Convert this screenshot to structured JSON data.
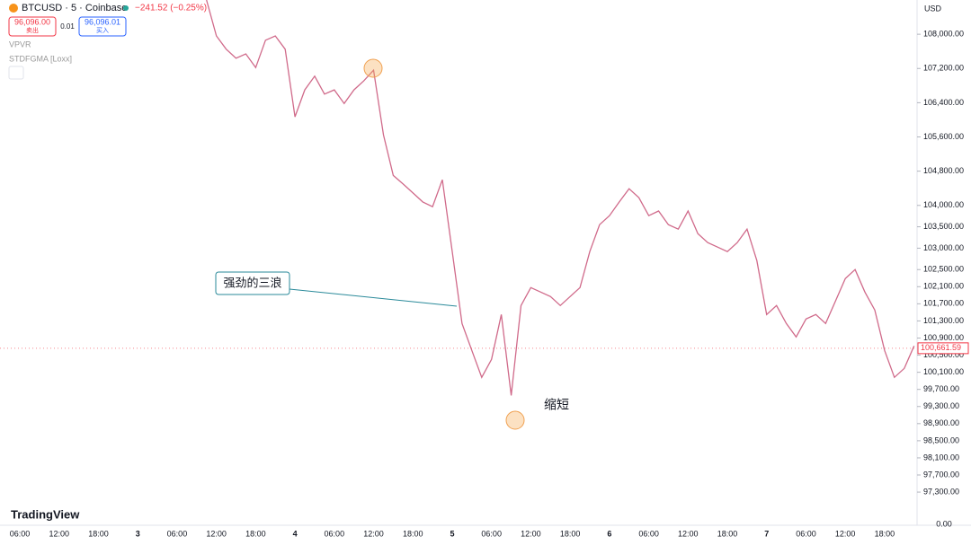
{
  "header": {
    "symbol": "BTCUSD · 5 · Coinbase",
    "change": "−241.52 (−0.25%)",
    "sell_price": "96,096.00",
    "sell_label": "卖出",
    "spread": "0.01",
    "buy_price": "96,096.01",
    "buy_label": "买入",
    "indicators": [
      "VPVR",
      "STDFGMA [Loxx]"
    ],
    "currency": "USD",
    "logo": "TradingView"
  },
  "chart_data": {
    "type": "line",
    "categories": [
      null,
      null,
      "06:00",
      null,
      null,
      null,
      "12:00",
      null,
      null,
      null,
      "18:00",
      null,
      null,
      null,
      "3",
      null,
      null,
      null,
      "06:00",
      null,
      null,
      null,
      "12:00",
      null,
      null,
      null,
      "18:00",
      null,
      null,
      null,
      "4",
      null,
      null,
      null,
      "06:00",
      null,
      null,
      null,
      "12:00",
      null,
      null,
      null,
      "18:00",
      null,
      null,
      null,
      "5",
      null,
      null,
      null,
      "06:00",
      null,
      null,
      null,
      "12:00",
      null,
      null,
      null,
      "18:00",
      null,
      null,
      null,
      "6",
      null,
      null,
      null,
      "06:00",
      null,
      null,
      null,
      "12:00",
      null,
      null,
      null,
      "18:00",
      null,
      null,
      null,
      "7",
      null,
      null,
      null,
      "06:00",
      null,
      null,
      null,
      "12:00",
      null,
      null,
      null,
      "18:00",
      null,
      null,
      null
    ],
    "series": [
      {
        "name": "BTCUSD",
        "color": "#d06a8a",
        "values": [
          null,
          null,
          null,
          null,
          null,
          null,
          null,
          null,
          null,
          null,
          null,
          null,
          null,
          null,
          null,
          null,
          null,
          null,
          null,
          null,
          null,
          108800,
          107960,
          107650,
          107440,
          107540,
          107220,
          107860,
          107960,
          107650,
          106070,
          106700,
          107020,
          106600,
          106700,
          106380,
          106700,
          106910,
          107160,
          105650,
          104700,
          104500,
          104290,
          104080,
          103970,
          104600,
          102920,
          101240,
          100610,
          99980,
          100400,
          101450,
          99560,
          101660,
          102080,
          101975,
          101870,
          101660,
          101870,
          102080,
          102920,
          103550,
          103760,
          104080,
          104390,
          104180,
          103760,
          103870,
          103550,
          103445,
          103870,
          103340,
          103130,
          103025,
          102920,
          103130,
          103445,
          102710,
          101450,
          101660,
          101240,
          100925,
          101345,
          101450,
          101240,
          101765,
          102290,
          102500,
          101975,
          101555,
          100610,
          99980,
          100190,
          100715
        ]
      }
    ],
    "ylim": [
      96630,
      108800
    ],
    "yticks": [
      {
        "value": 108000,
        "label": "108,000.00"
      },
      {
        "value": 107200,
        "label": "107,200.00"
      },
      {
        "value": 106400,
        "label": "106,400.00"
      },
      {
        "value": 105600,
        "label": "105,600.00"
      },
      {
        "value": 104800,
        "label": "104,800.00"
      },
      {
        "value": 104000,
        "label": "104,000.00"
      },
      {
        "value": 103500,
        "label": "103,500.00"
      },
      {
        "value": 103000,
        "label": "103,000.00"
      },
      {
        "value": 102500,
        "label": "102,500.00"
      },
      {
        "value": 102100,
        "label": "102,100.00"
      },
      {
        "value": 101700,
        "label": "101,700.00"
      },
      {
        "value": 101300,
        "label": "101,300.00"
      },
      {
        "value": 100900,
        "label": "100,900.00"
      },
      {
        "value": 100500,
        "label": "100,500.00"
      },
      {
        "value": 100100,
        "label": "100,100.00"
      },
      {
        "value": 99700,
        "label": "99,700.00"
      },
      {
        "value": 99300,
        "label": "99,300.00"
      },
      {
        "value": 98900,
        "label": "98,900.00"
      },
      {
        "value": 98500,
        "label": "98,500.00"
      },
      {
        "value": 98100,
        "label": "98,100.00"
      },
      {
        "value": 97700,
        "label": "97,700.00"
      },
      {
        "value": 97300,
        "label": "97,300.00"
      }
    ],
    "volume_axis_label": "0.00",
    "last_price": {
      "value": 100661.59,
      "label": "100,661.59"
    },
    "annotations": [
      "强劲的三浪",
      "缩短"
    ]
  }
}
